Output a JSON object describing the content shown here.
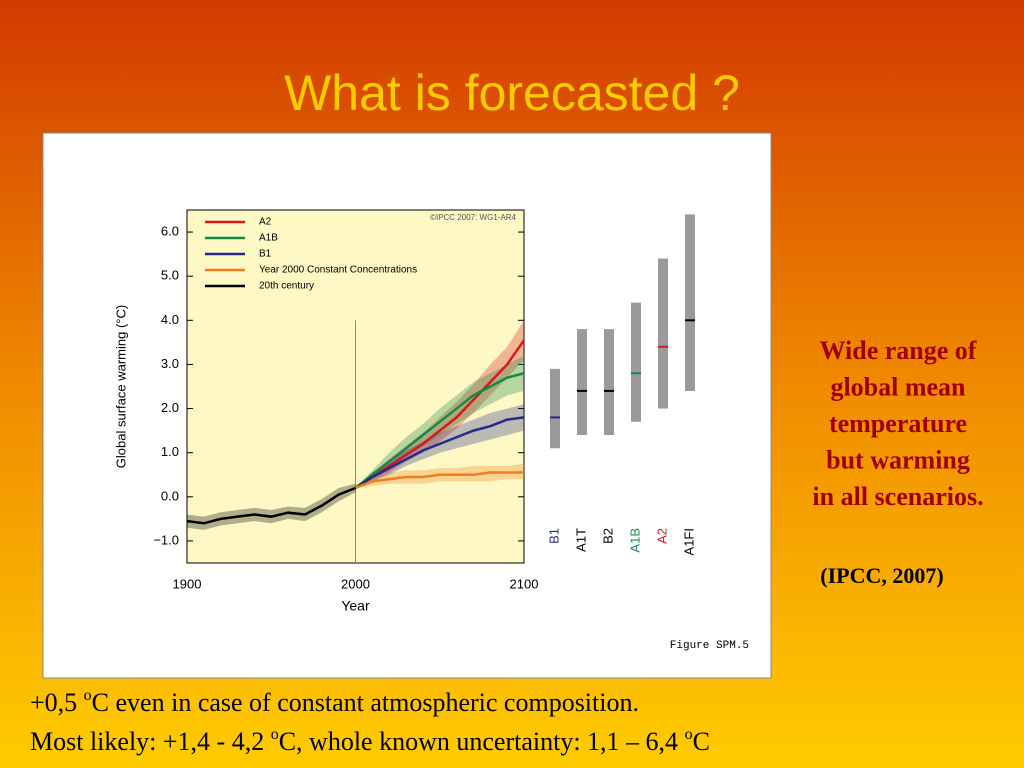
{
  "slide": {
    "title": "What is forecasted ?",
    "side_text": [
      "Wide range of",
      "global mean",
      "temperature",
      "but warming",
      "in all scenarios."
    ],
    "citation": "(IPCC, 2007)",
    "figure_caption": "Figure SPM.5",
    "bottom_lines": [
      [
        "+0,5 ",
        "o",
        "C even in case of constant atmospheric composition."
      ],
      [
        "Most likely: +1,4 - 4,2 ",
        "o",
        "C, whole known uncertainty: 1,1 – 6,4 ",
        "o",
        "C"
      ]
    ]
  },
  "chart_data": {
    "type": "line",
    "copyright": "©IPCC  2007: WG1-AR4",
    "x_label": "Year",
    "y_label": "Global surface warming (°C)",
    "xlim": [
      1900,
      2100
    ],
    "xticks": [
      1900,
      2000,
      2100
    ],
    "ylim": [
      -1.5,
      6.5
    ],
    "yticks": [
      {
        "value": -1,
        "label": "−1.0"
      },
      {
        "value": 0,
        "label": "0.0"
      },
      {
        "value": 1,
        "label": "1.0"
      },
      {
        "value": 2,
        "label": "2.0"
      },
      {
        "value": 3,
        "label": "3.0"
      },
      {
        "value": 4,
        "label": "4.0"
      },
      {
        "value": 5,
        "label": "5.0"
      },
      {
        "value": 6,
        "label": "6.0"
      }
    ],
    "marker_year": 2000,
    "series": [
      {
        "name": "A2",
        "color": "#d7191c",
        "x": [
          2000,
          2010,
          2020,
          2030,
          2040,
          2050,
          2060,
          2070,
          2080,
          2090,
          2100
        ],
        "values": [
          0.2,
          0.45,
          0.7,
          0.95,
          1.2,
          1.5,
          1.8,
          2.2,
          2.6,
          3.0,
          3.55
        ],
        "lower": [
          0.2,
          0.35,
          0.55,
          0.8,
          1.0,
          1.25,
          1.55,
          1.9,
          2.3,
          2.7,
          3.1
        ],
        "upper": [
          0.2,
          0.55,
          0.85,
          1.15,
          1.45,
          1.8,
          2.15,
          2.55,
          3.0,
          3.4,
          4.0
        ]
      },
      {
        "name": "A1B",
        "color": "#16884a",
        "x": [
          2000,
          2010,
          2020,
          2030,
          2040,
          2050,
          2060,
          2070,
          2080,
          2090,
          2100
        ],
        "values": [
          0.2,
          0.5,
          0.8,
          1.1,
          1.4,
          1.7,
          2.0,
          2.3,
          2.5,
          2.7,
          2.8
        ],
        "lower": [
          0.2,
          0.4,
          0.6,
          0.9,
          1.15,
          1.4,
          1.65,
          1.9,
          2.1,
          2.3,
          2.4
        ],
        "upper": [
          0.2,
          0.6,
          1.0,
          1.35,
          1.65,
          2.0,
          2.3,
          2.6,
          2.8,
          3.0,
          3.2
        ]
      },
      {
        "name": "B1",
        "color": "#262a8a",
        "x": [
          2000,
          2010,
          2020,
          2030,
          2040,
          2050,
          2060,
          2070,
          2080,
          2090,
          2100
        ],
        "values": [
          0.2,
          0.45,
          0.65,
          0.85,
          1.05,
          1.2,
          1.35,
          1.5,
          1.6,
          1.75,
          1.8
        ],
        "lower": [
          0.2,
          0.35,
          0.5,
          0.7,
          0.85,
          1.0,
          1.1,
          1.2,
          1.3,
          1.4,
          1.5
        ],
        "upper": [
          0.2,
          0.55,
          0.8,
          1.05,
          1.25,
          1.45,
          1.6,
          1.75,
          1.9,
          2.0,
          2.1
        ]
      },
      {
        "name": "Year 2000 Constant Concentrations",
        "color": "#f07f1f",
        "x": [
          2000,
          2010,
          2020,
          2030,
          2040,
          2050,
          2060,
          2070,
          2080,
          2090,
          2100
        ],
        "values": [
          0.2,
          0.35,
          0.4,
          0.45,
          0.45,
          0.5,
          0.5,
          0.5,
          0.55,
          0.55,
          0.55
        ],
        "lower": [
          0.2,
          0.25,
          0.3,
          0.3,
          0.3,
          0.35,
          0.35,
          0.35,
          0.35,
          0.4,
          0.4
        ],
        "upper": [
          0.2,
          0.45,
          0.55,
          0.6,
          0.6,
          0.65,
          0.65,
          0.7,
          0.7,
          0.7,
          0.75
        ]
      },
      {
        "name": "20th century",
        "color": "#000000",
        "x": [
          1900,
          1910,
          1920,
          1930,
          1940,
          1950,
          1960,
          1970,
          1980,
          1990,
          2000
        ],
        "values": [
          -0.55,
          -0.6,
          -0.5,
          -0.45,
          -0.4,
          -0.45,
          -0.36,
          -0.4,
          -0.2,
          0.05,
          0.2
        ],
        "lower": [
          -0.7,
          -0.75,
          -0.65,
          -0.6,
          -0.55,
          -0.6,
          -0.5,
          -0.55,
          -0.35,
          -0.1,
          0.1
        ],
        "upper": [
          -0.4,
          -0.45,
          -0.35,
          -0.3,
          -0.25,
          -0.3,
          -0.22,
          -0.25,
          -0.05,
          0.2,
          0.3
        ]
      }
    ],
    "scenario_ranges": {
      "categories": [
        "B1",
        "A1T",
        "B2",
        "A1B",
        "A2",
        "A1FI"
      ],
      "label_colors": [
        "#262a8a",
        "#000000",
        "#000000",
        "#16884a",
        "#d7191c",
        "#000000"
      ],
      "low": [
        1.1,
        1.4,
        1.4,
        1.7,
        2.0,
        2.4
      ],
      "high": [
        2.9,
        3.8,
        3.8,
        4.4,
        5.4,
        6.4
      ],
      "best": [
        1.8,
        2.4,
        2.4,
        2.8,
        3.4,
        4.0
      ],
      "bar_color": "#9a9a9a"
    }
  }
}
